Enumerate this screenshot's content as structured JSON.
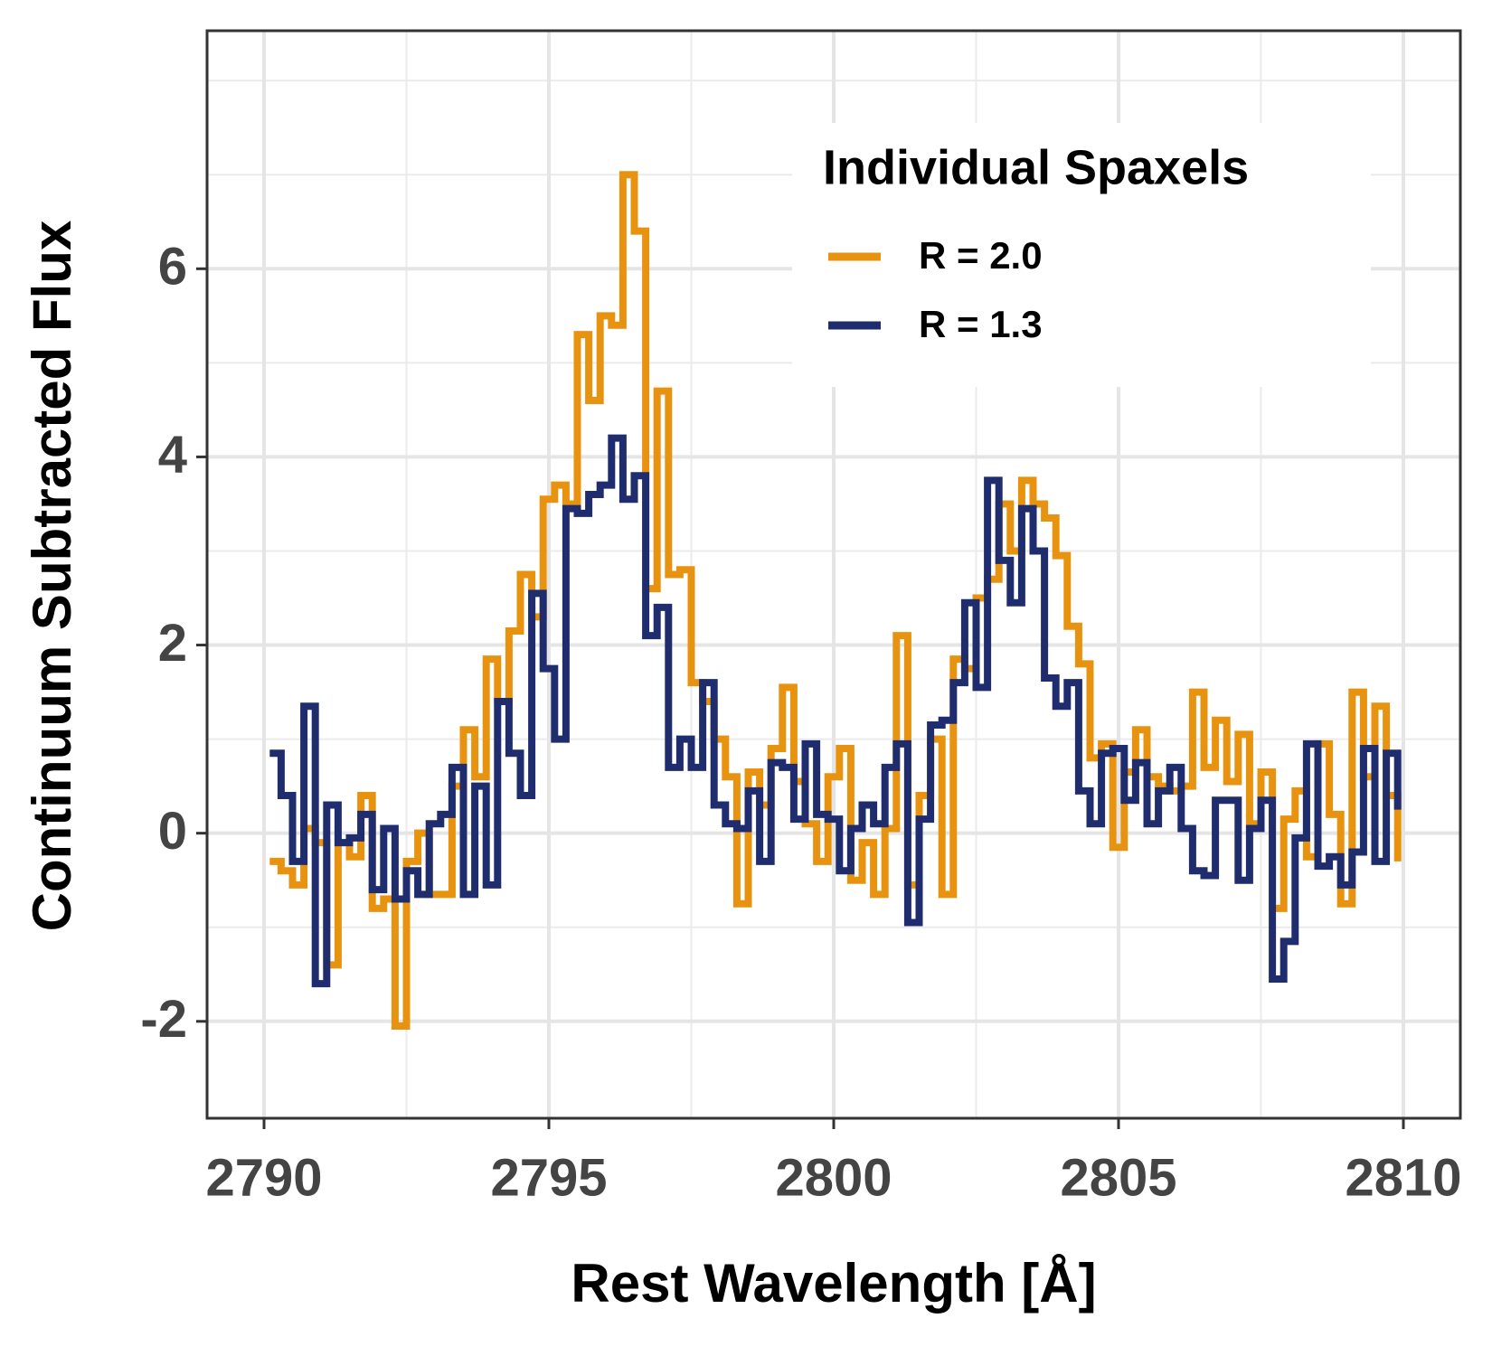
{
  "chart_data": {
    "type": "line",
    "step": true,
    "xlabel": "Rest Wavelength [Å]",
    "ylabel": "Continuum Subtracted Flux",
    "legend_title": "Individual Spaxels",
    "legend": "top-right",
    "grid": true,
    "xlim": [
      2789,
      2811
    ],
    "ylim": [
      -3.03,
      8.53
    ],
    "xticks": [
      2790,
      2795,
      2800,
      2805,
      2810
    ],
    "yticks": [
      -2,
      0,
      2,
      4,
      6
    ],
    "x_minor_ticks": [
      2792.5,
      2797.5,
      2802.5,
      2807.5
    ],
    "y_minor_ticks": [
      -1,
      1,
      3,
      5,
      7,
      8
    ],
    "x": [
      2790.1,
      2790.3,
      2790.5,
      2790.7,
      2790.9,
      2791.1,
      2791.3,
      2791.5,
      2791.7,
      2791.9,
      2792.1,
      2792.3,
      2792.5,
      2792.7,
      2792.9,
      2793.1,
      2793.3,
      2793.5,
      2793.7,
      2793.9,
      2794.1,
      2794.3,
      2794.5,
      2794.7,
      2794.9,
      2795.1,
      2795.3,
      2795.5,
      2795.7,
      2795.9,
      2796.1,
      2796.3,
      2796.5,
      2796.7,
      2796.9,
      2797.1,
      2797.3,
      2797.5,
      2797.7,
      2797.9,
      2798.1,
      2798.3,
      2798.5,
      2798.7,
      2798.9,
      2799.1,
      2799.3,
      2799.5,
      2799.7,
      2799.9,
      2800.1,
      2800.3,
      2800.5,
      2800.7,
      2800.9,
      2801.1,
      2801.3,
      2801.5,
      2801.7,
      2801.9,
      2802.1,
      2802.3,
      2802.5,
      2802.7,
      2802.9,
      2803.1,
      2803.3,
      2803.5,
      2803.7,
      2803.9,
      2804.1,
      2804.3,
      2804.5,
      2804.7,
      2804.9,
      2805.1,
      2805.3,
      2805.5,
      2805.7,
      2805.9,
      2806.1,
      2806.3,
      2806.5,
      2806.7,
      2806.9,
      2807.1,
      2807.3,
      2807.5,
      2807.7,
      2807.9,
      2808.1,
      2808.3,
      2808.5,
      2808.7,
      2808.9,
      2809.1,
      2809.3,
      2809.5,
      2809.7,
      2809.9
    ],
    "series": [
      {
        "name": "R = 2.0",
        "color": "#e8930f",
        "values": [
          -0.3,
          -0.4,
          -0.55,
          0.05,
          -0.1,
          -1.4,
          -0.1,
          -0.25,
          0.4,
          -0.8,
          -0.7,
          -2.05,
          -0.3,
          0.0,
          -0.65,
          -0.65,
          0.5,
          1.1,
          0.6,
          1.85,
          1.4,
          2.15,
          2.75,
          2.3,
          3.55,
          3.7,
          3.5,
          5.3,
          4.6,
          5.5,
          5.4,
          7.0,
          6.4,
          2.6,
          4.7,
          2.75,
          2.8,
          1.6,
          1.4,
          1.0,
          0.6,
          -0.75,
          0.65,
          0.3,
          0.9,
          1.55,
          0.55,
          0.1,
          -0.3,
          0.6,
          0.9,
          -0.5,
          -0.1,
          -0.65,
          0.05,
          2.1,
          -0.55,
          0.4,
          1.0,
          -0.65,
          1.85,
          1.75,
          2.5,
          2.7,
          3.5,
          3.0,
          3.75,
          3.5,
          3.35,
          2.95,
          2.2,
          1.8,
          0.8,
          0.95,
          -0.15,
          0.65,
          1.1,
          0.6,
          0.5,
          0.45,
          0.5,
          1.5,
          0.7,
          1.2,
          0.55,
          1.05,
          0.1,
          0.65,
          -0.8,
          0.15,
          0.45,
          -0.25,
          0.95,
          0.2,
          -0.75,
          1.5,
          0.6,
          1.35,
          0.4,
          -0.3
        ]
      },
      {
        "name": "R = 1.3",
        "color": "#1f2d6e",
        "values": [
          0.85,
          0.4,
          -0.3,
          1.35,
          -1.6,
          0.3,
          -0.1,
          -0.05,
          0.2,
          -0.6,
          0.05,
          -0.7,
          -0.4,
          -0.65,
          0.1,
          0.2,
          0.7,
          -0.65,
          0.5,
          -0.55,
          1.4,
          0.85,
          0.4,
          2.55,
          1.75,
          1.0,
          3.45,
          3.4,
          3.6,
          3.7,
          4.2,
          3.55,
          3.8,
          2.1,
          2.4,
          0.7,
          1.0,
          0.7,
          1.6,
          0.3,
          0.1,
          0.05,
          0.45,
          -0.3,
          0.75,
          0.7,
          0.15,
          0.95,
          0.2,
          0.15,
          -0.4,
          0.05,
          0.3,
          0.1,
          0.7,
          0.95,
          -0.95,
          0.15,
          1.15,
          1.2,
          1.6,
          2.45,
          1.55,
          3.75,
          2.9,
          2.45,
          3.45,
          3.0,
          1.65,
          1.35,
          1.6,
          0.45,
          0.1,
          0.85,
          0.9,
          0.35,
          0.75,
          0.1,
          0.45,
          0.7,
          0.05,
          -0.4,
          -0.45,
          0.35,
          0.35,
          -0.5,
          0.05,
          0.35,
          -1.55,
          -1.15,
          -0.05,
          0.95,
          -0.35,
          -0.25,
          -0.55,
          -0.2,
          0.9,
          -0.3,
          0.85,
          0.25
        ]
      }
    ]
  }
}
